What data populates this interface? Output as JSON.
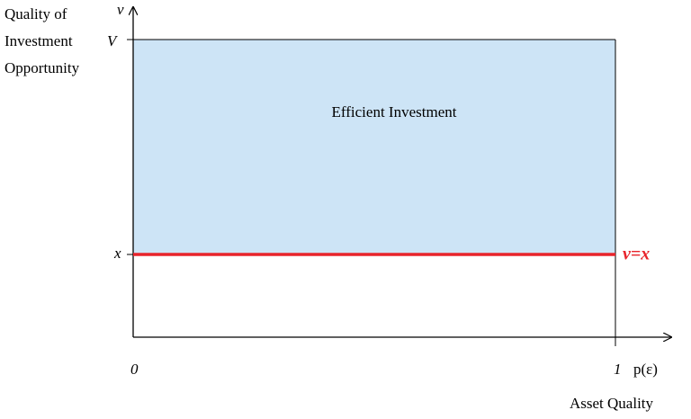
{
  "axes": {
    "y_symbol": "v",
    "x_symbol": "p(ε)",
    "y_title": [
      "Quality of",
      "Investment",
      "Opportunity"
    ],
    "x_title": "Asset Quality",
    "origin": "0",
    "y_ticks": [
      "V",
      "x"
    ],
    "x_ticks": [
      "1"
    ]
  },
  "regions": [
    {
      "label": "Efficient Investment"
    }
  ],
  "lines": [
    {
      "label": "v=x"
    }
  ]
}
